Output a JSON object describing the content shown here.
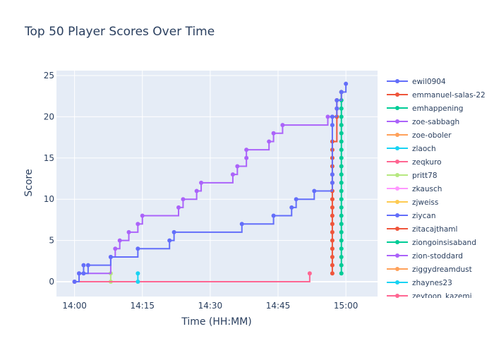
{
  "chart_data": {
    "type": "line",
    "line_shape": "step",
    "title": "Top 50 Player Scores Over Time",
    "xlabel": "Time (HH:MM)",
    "ylabel": "Score",
    "x_format": "HH:MM",
    "x_range_minutes": [
      "13:56",
      "15:07"
    ],
    "x_ticks": [
      {
        "minute": "14:00",
        "label": "14:00"
      },
      {
        "minute": "14:15",
        "label": "14:15"
      },
      {
        "minute": "14:30",
        "label": "14:30"
      },
      {
        "minute": "14:45",
        "label": "14:45"
      },
      {
        "minute": "15:00",
        "label": "15:00"
      }
    ],
    "ylim": [
      -1.8,
      25.6
    ],
    "y_ticks": [
      0,
      5,
      10,
      15,
      20,
      25
    ],
    "grid": true,
    "background": "#e5ecf6",
    "legend_position": "right",
    "series": [
      {
        "name": "ewil0904",
        "color": "#636efa",
        "points": [
          [
            "14:00",
            0
          ],
          [
            "14:01",
            1
          ],
          [
            "14:02",
            2
          ],
          [
            "14:02",
            1
          ],
          [
            "14:03",
            2
          ],
          [
            "14:08",
            3
          ],
          [
            "14:14",
            4
          ],
          [
            "14:21",
            5
          ],
          [
            "14:22",
            6
          ],
          [
            "14:37",
            7
          ],
          [
            "14:44",
            8
          ],
          [
            "14:48",
            9
          ],
          [
            "14:49",
            10
          ],
          [
            "14:53",
            11
          ],
          [
            "14:57",
            12
          ],
          [
            "14:57",
            13
          ],
          [
            "14:57",
            19
          ],
          [
            "14:57",
            20
          ],
          [
            "14:58",
            21
          ],
          [
            "14:58",
            22
          ],
          [
            "14:59",
            23
          ],
          [
            "15:00",
            24
          ]
        ]
      },
      {
        "name": "emmanuel-salas-22",
        "color": "#ef553b",
        "points": [
          [
            "14:57",
            1
          ],
          [
            "14:57",
            2
          ],
          [
            "14:57",
            3
          ],
          [
            "14:57",
            4
          ],
          [
            "14:57",
            5
          ],
          [
            "14:57",
            6
          ],
          [
            "14:57",
            7
          ],
          [
            "14:57",
            8
          ],
          [
            "14:57",
            9
          ],
          [
            "14:57",
            10
          ],
          [
            "14:57",
            11
          ],
          [
            "14:57",
            12
          ],
          [
            "14:57",
            13
          ],
          [
            "14:57",
            14
          ],
          [
            "14:57",
            15
          ],
          [
            "14:57",
            16
          ],
          [
            "14:57",
            17
          ],
          [
            "14:58",
            20
          ],
          [
            "14:58",
            21
          ],
          [
            "14:58",
            22
          ],
          [
            "14:59",
            23
          ]
        ]
      },
      {
        "name": "emhappening",
        "color": "#00cc96",
        "points": [
          [
            "14:59",
            1
          ],
          [
            "14:59",
            2
          ],
          [
            "14:59",
            3
          ],
          [
            "14:59",
            4
          ],
          [
            "14:59",
            5
          ],
          [
            "14:59",
            6
          ],
          [
            "14:59",
            7
          ],
          [
            "14:59",
            8
          ],
          [
            "14:59",
            9
          ],
          [
            "14:59",
            10
          ],
          [
            "14:59",
            11
          ],
          [
            "14:59",
            12
          ],
          [
            "14:59",
            13
          ],
          [
            "14:59",
            14
          ],
          [
            "14:59",
            15
          ],
          [
            "14:59",
            16
          ],
          [
            "14:59",
            17
          ],
          [
            "14:59",
            18
          ],
          [
            "14:59",
            19
          ],
          [
            "14:59",
            20
          ],
          [
            "14:59",
            21
          ],
          [
            "14:59",
            22
          ],
          [
            "14:59",
            23
          ]
        ]
      },
      {
        "name": "zoe-sabbagh",
        "color": "#ab63fa",
        "points": [
          [
            "14:00",
            0
          ],
          [
            "14:01",
            1
          ],
          [
            "14:08",
            3
          ],
          [
            "14:09",
            4
          ],
          [
            "14:10",
            5
          ],
          [
            "14:12",
            6
          ],
          [
            "14:14",
            7
          ],
          [
            "14:15",
            8
          ],
          [
            "14:23",
            9
          ],
          [
            "14:24",
            10
          ],
          [
            "14:27",
            11
          ],
          [
            "14:28",
            12
          ],
          [
            "14:35",
            13
          ],
          [
            "14:36",
            14
          ],
          [
            "14:38",
            15
          ],
          [
            "14:38",
            16
          ],
          [
            "14:43",
            17
          ],
          [
            "14:44",
            18
          ],
          [
            "14:46",
            19
          ],
          [
            "14:56",
            20
          ],
          [
            "14:57",
            20
          ],
          [
            "14:58",
            21
          ],
          [
            "14:58",
            22
          ]
        ]
      },
      {
        "name": "zoe-oboler",
        "color": "#ffa15a",
        "points": [
          [
            "14:00",
            0
          ]
        ]
      },
      {
        "name": "zlaoch",
        "color": "#19d3f3",
        "points": [
          [
            "14:14",
            0
          ],
          [
            "14:14",
            1
          ]
        ]
      },
      {
        "name": "zeqkuro",
        "color": "#ff6692",
        "points": [
          [
            "14:00",
            0
          ],
          [
            "14:52",
            1
          ]
        ]
      },
      {
        "name": "pritt78",
        "color": "#b6e880",
        "points": [
          [
            "14:08",
            0
          ],
          [
            "14:08",
            1
          ]
        ]
      },
      {
        "name": "zkausch",
        "color": "#ff97ff",
        "points": []
      },
      {
        "name": "zjweiss",
        "color": "#fecb52",
        "points": []
      },
      {
        "name": "ziycan",
        "color": "#636efa",
        "points": []
      },
      {
        "name": "zitacajthaml",
        "color": "#ef553b",
        "points": []
      },
      {
        "name": "ziongoinsisaband",
        "color": "#00cc96",
        "points": []
      },
      {
        "name": "zion-stoddard",
        "color": "#ab63fa",
        "points": []
      },
      {
        "name": "ziggydreamdust",
        "color": "#ffa15a",
        "points": []
      },
      {
        "name": "zhaynes23",
        "color": "#19d3f3",
        "points": []
      },
      {
        "name": "zeytoon_kazemi",
        "color": "#ff6692",
        "points": []
      }
    ]
  }
}
